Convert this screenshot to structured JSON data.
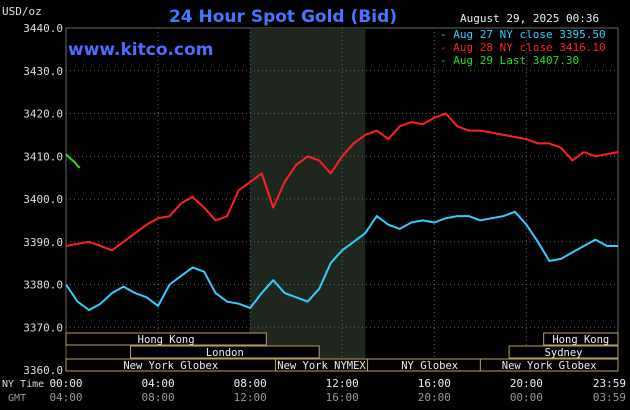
{
  "title": "24 Hour Spot Gold (Bid)",
  "site": "www.kitco.com",
  "timestamp": "August 29, 2025 00:36",
  "y_unit": "USD/oz",
  "legend": [
    {
      "label": "Aug 27 NY close 3395.50",
      "color": "#33ccff"
    },
    {
      "label": "Aug 28 NY close 3416.10",
      "color": "#ff2020"
    },
    {
      "label": "Aug 29 Last 3407.30",
      "color": "#22dd22"
    }
  ],
  "sessions": [
    {
      "name": "Hong Kong",
      "start": -2.0,
      "end": 8.7
    },
    {
      "name": "Hong Kong",
      "start": 20.75,
      "end": 23.98
    },
    {
      "name": "London",
      "start": 2.8,
      "end": 11.0
    },
    {
      "name": "Sydney",
      "start": 19.25,
      "end": 23.98
    },
    {
      "name": "New York Globex",
      "start": 0.0,
      "end": 9.1
    },
    {
      "name": "New York NYMEX",
      "start": 9.1,
      "end": 13.1
    },
    {
      "name": "NY Globex",
      "start": 13.1,
      "end": 18.5
    },
    {
      "name": "New York Globex",
      "start": 18.0,
      "end": 23.98
    }
  ],
  "time_labels": {
    "ny_label": "NY Time",
    "gmt_label": "GMT",
    "ny": [
      "00:00",
      "04:00",
      "08:00",
      "12:00",
      "16:00",
      "20:00",
      "23:59"
    ],
    "gmt": [
      "04:00",
      "08:00",
      "12:00",
      "16:00",
      "20:00",
      "00:00",
      "03:59"
    ]
  },
  "chart_data": {
    "type": "line",
    "title": "24 Hour Spot Gold (Bid)",
    "ylabel": "USD/oz",
    "xlabel": "NY Time",
    "ylim": [
      3360,
      3440
    ],
    "xlim": [
      0,
      23.98
    ],
    "yticks": [
      "3440.0",
      "3430.0",
      "3420.0",
      "3410.0",
      "3400.0",
      "3390.0",
      "3380.0",
      "3370.0",
      "3360.0"
    ],
    "grid": true,
    "legend_position": "top-right",
    "highlight_period": [
      8.0,
      13.0
    ],
    "series": [
      {
        "name": "Aug 27 NY close 3395.50",
        "color": "#33ccff",
        "x": [
          0,
          0.5,
          1,
          1.5,
          2,
          2.5,
          3,
          3.5,
          4,
          4.5,
          5,
          5.5,
          6,
          6.5,
          7,
          7.5,
          8,
          8.5,
          9,
          9.5,
          10,
          10.5,
          11,
          11.5,
          12,
          12.5,
          13,
          13.5,
          14,
          14.5,
          15,
          15.5,
          16,
          16.5,
          17,
          17.5,
          18,
          18.5,
          19,
          19.5,
          20,
          20.5,
          21,
          21.5,
          22,
          22.5,
          23,
          23.5,
          23.98
        ],
        "y": [
          3380,
          3376,
          3374,
          3375.5,
          3378,
          3379.5,
          3378,
          3377,
          3375,
          3380,
          3382,
          3384,
          3383,
          3378,
          3376,
          3375.5,
          3374.5,
          3378,
          3381,
          3378,
          3377,
          3376,
          3379,
          3385,
          3388,
          3390,
          3392,
          3396,
          3394,
          3393,
          3394.5,
          3395,
          3394.5,
          3395.5,
          3396,
          3396,
          3395,
          3395.5,
          3396,
          3397,
          3394,
          3390,
          3385.5,
          3386,
          3387.5,
          3389,
          3390.5,
          3389,
          3389
        ]
      },
      {
        "name": "Aug 28 NY close 3416.10",
        "color": "#ff2020",
        "x": [
          0,
          0.5,
          1,
          1.5,
          2,
          2.5,
          3,
          3.5,
          4,
          4.5,
          5,
          5.5,
          6,
          6.5,
          7,
          7.5,
          8,
          8.5,
          9,
          9.5,
          10,
          10.5,
          11,
          11.5,
          12,
          12.5,
          13,
          13.5,
          14,
          14.5,
          15,
          15.5,
          16,
          16.5,
          17,
          17.5,
          18,
          18.5,
          19,
          19.5,
          20,
          20.5,
          21,
          21.5,
          22,
          22.5,
          23,
          23.5,
          23.98
        ],
        "y": [
          3389,
          3389.5,
          3390,
          3389,
          3388,
          3390,
          3392,
          3394,
          3395.5,
          3396,
          3399,
          3400.5,
          3398,
          3395,
          3396,
          3402,
          3404,
          3406,
          3398,
          3404,
          3408,
          3410,
          3409,
          3406,
          3410,
          3413,
          3415,
          3416,
          3414,
          3417,
          3418,
          3417.5,
          3419,
          3420,
          3417,
          3416,
          3416,
          3415.5,
          3415,
          3414.5,
          3414,
          3413,
          3413,
          3412,
          3409,
          3411,
          3410,
          3410.5,
          3411
        ]
      },
      {
        "name": "Aug 29 Last 3407.30",
        "color": "#22dd22",
        "x": [
          0,
          0.12,
          0.25,
          0.38,
          0.5,
          0.6
        ],
        "y": [
          3410.5,
          3409.8,
          3409.2,
          3408.6,
          3407.8,
          3407.3
        ]
      }
    ]
  }
}
